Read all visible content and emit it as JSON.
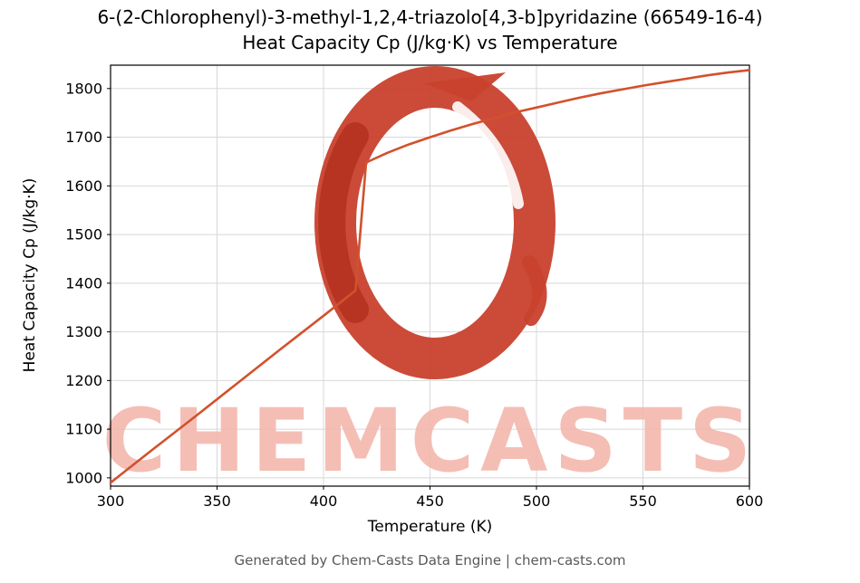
{
  "header": {
    "title_line1": "6-(2-Chlorophenyl)-3-methyl-1,2,4-triazolo[4,3-b]pyridazine (66549-16-4)",
    "title_line2": "Heat Capacity Cp (J/kg·K) vs Temperature"
  },
  "watermark": {
    "text": "CHEMCASTS",
    "logo": "chemcasts-brush-ring-logo"
  },
  "footer": {
    "text": "Generated by Chem-Casts Data Engine | chem-casts.com"
  },
  "chart_data": {
    "type": "line",
    "title": "Heat Capacity Cp (J/kg·K) vs Temperature",
    "xlabel": "Temperature (K)",
    "ylabel": "Heat Capacity Cp (J/kg·K)",
    "xlim": [
      300,
      600
    ],
    "ylim": [
      983,
      1848
    ],
    "xticks": [
      300,
      350,
      400,
      450,
      500,
      550,
      600
    ],
    "yticks": [
      1000,
      1100,
      1200,
      1300,
      1400,
      1500,
      1600,
      1700,
      1800
    ],
    "grid": true,
    "grid_color": "#d8d8d8",
    "line_color": "#d2512c",
    "watermark_color": "#f3b7ae",
    "logo_color": "#c8412d",
    "logo_accent_color": "#b5301f",
    "series": [
      {
        "name": "Cp",
        "x": [
          300,
          320,
          340,
          360,
          380,
          400,
          415,
          420,
          430,
          440,
          450,
          460,
          470,
          480,
          490,
          500,
          510,
          520,
          530,
          540,
          550,
          560,
          570,
          580,
          590,
          600
        ],
        "y": [
          990,
          1059,
          1127,
          1196,
          1265,
          1333,
          1385,
          1648,
          1668,
          1685,
          1700,
          1714,
          1727,
          1739,
          1751,
          1761,
          1771,
          1781,
          1790,
          1798,
          1806,
          1813,
          1820,
          1827,
          1833,
          1838
        ]
      }
    ]
  }
}
